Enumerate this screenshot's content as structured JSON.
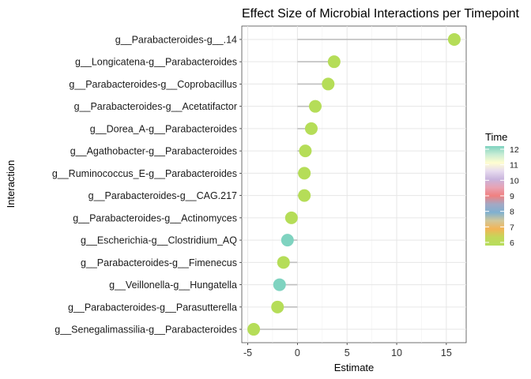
{
  "chart_data": {
    "type": "lollipop",
    "title": "Effect Size of Microbial Interactions per Timepoint",
    "xlabel": "Estimate",
    "ylabel": "Interaction",
    "xlim": [
      -5.6,
      17.0
    ],
    "xticks": [
      -5,
      0,
      5,
      10,
      15
    ],
    "xtick_labels": [
      "-5",
      "0",
      "5",
      "10",
      "15"
    ],
    "grid": true,
    "legend": {
      "title": "Time",
      "placement": "right",
      "ticks": [
        12,
        11,
        10,
        9,
        8,
        7,
        6
      ],
      "colors_top_to_bottom": [
        "#7fd3c0",
        "#c7ecd4",
        "#fffdd0",
        "#e8dcef",
        "#c9b4dd",
        "#e8a3b4",
        "#f08080",
        "#a4a8c4",
        "#7fb0d0",
        "#d2c89a",
        "#f3b456",
        "#c3d85a",
        "#b6dd5c"
      ]
    },
    "categories": [
      "g__Parabacteroides-g__.14",
      "g__Longicatena-g__Parabacteroides",
      "g__Parabacteroides-g__Coprobacillus",
      "g__Parabacteroides-g__Acetatifactor",
      "g__Dorea_A-g__Parabacteroides",
      "g__Agathobacter-g__Parabacteroides",
      "g__Ruminococcus_E-g__Parabacteroides",
      "g__Parabacteroides-g__CAG.217",
      "g__Parabacteroides-g__Actinomyces",
      "g__Escherichia-g__Clostridium_AQ",
      "g__Parabacteroides-g__Fimenecus",
      "g__Veillonella-g__Hungatella",
      "g__Parabacteroides-g__Parasutterella",
      "g__Senegalimassilia-g__Parabacteroides"
    ],
    "values": [
      15.8,
      3.7,
      3.1,
      1.8,
      1.4,
      0.8,
      0.7,
      0.7,
      -0.6,
      -1.0,
      -1.4,
      -1.8,
      -2.0,
      -4.4
    ],
    "time": [
      6,
      6,
      6,
      6,
      6,
      6,
      6,
      6,
      6,
      12,
      6,
      12,
      6,
      6
    ],
    "point_colors": [
      "#b5dd58",
      "#b5dd58",
      "#b5dd58",
      "#b5dd58",
      "#b5dd58",
      "#b5dd58",
      "#b5dd58",
      "#b5dd58",
      "#b5dd58",
      "#7fd3c0",
      "#b5dd58",
      "#7fd3c0",
      "#b5dd58",
      "#b5dd58"
    ],
    "segment_color": "#bfbfbf"
  }
}
